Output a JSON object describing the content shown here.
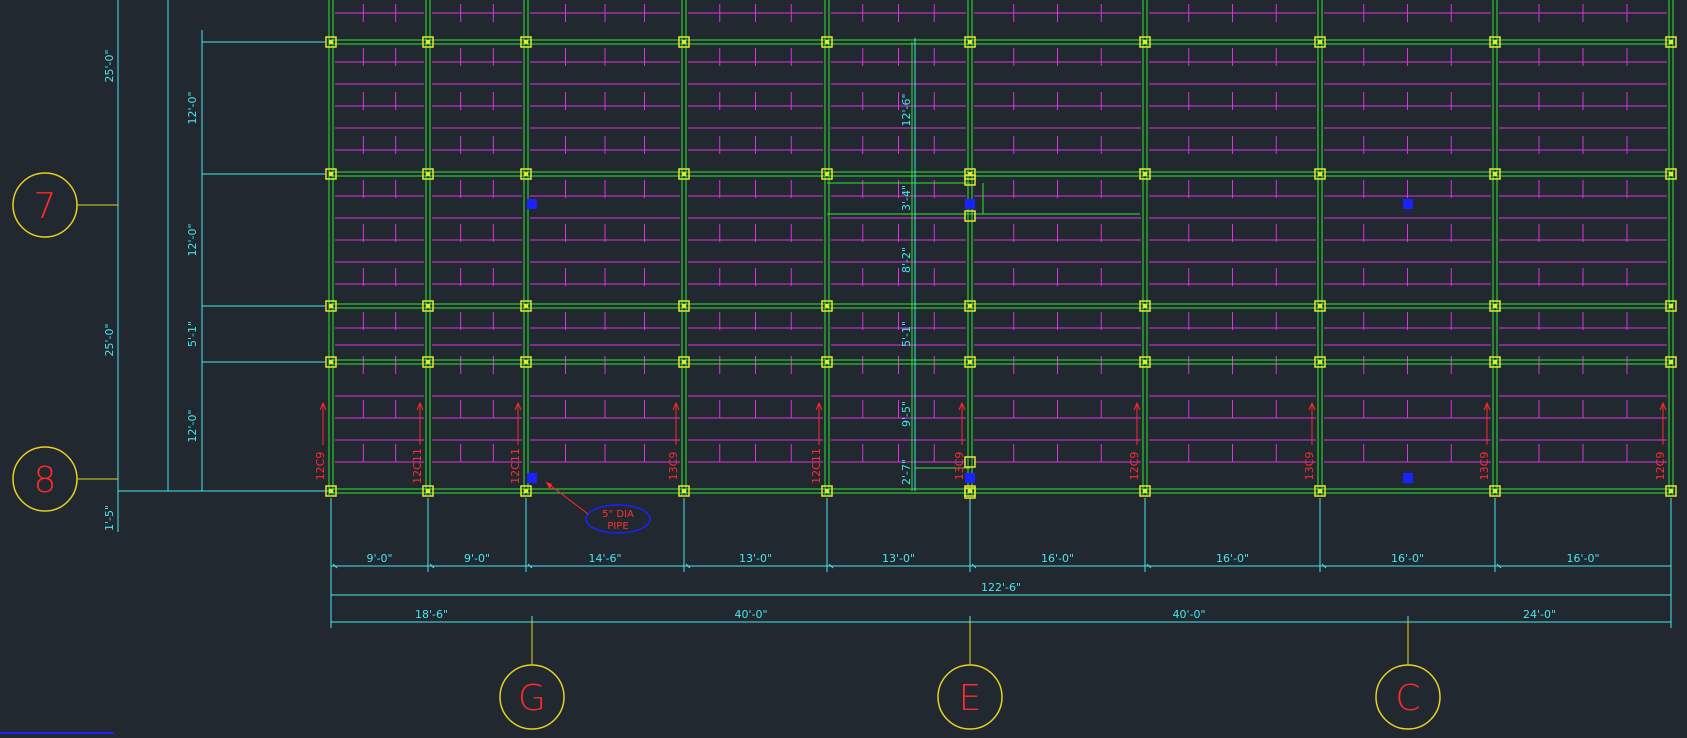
{
  "drawing": {
    "colors": {
      "background": "#212830",
      "grid_beam": "#2ee82e",
      "joist": "#dd33dd",
      "dimension": "#49e6ee",
      "bubble": "#e6d21f",
      "member_label": "#ff2a2a",
      "column_node": "#e6e632",
      "pipe": "#1a22ff"
    },
    "grid_bubbles": {
      "vertical": [
        {
          "id": "grid-bubble-7",
          "label": "7"
        },
        {
          "id": "grid-bubble-8",
          "label": "8"
        }
      ],
      "horizontal": [
        {
          "id": "grid-bubble-g",
          "label": "G"
        },
        {
          "id": "grid-bubble-e",
          "label": "E"
        },
        {
          "id": "grid-bubble-c",
          "label": "C"
        }
      ]
    },
    "bay_dimensions": [
      "9'-0\"",
      "9'-0\"",
      "14'-6\"",
      "13'-0\"",
      "13'-0\"",
      "16'-0\"",
      "16'-0\"",
      "16'-0\"",
      "16'-0\""
    ],
    "overall_dimension": "122'-6\"",
    "grid_dimensions": [
      "18'-6\"",
      "40'-0\"",
      "40'-0\"",
      "24'-0\""
    ],
    "left_vertical_dimensions": [
      "25'-0\"",
      "25'-0\"",
      "1'-5\""
    ],
    "inner_vertical_dimensions": [
      "12'-0\"",
      "12'-0\"",
      "5'-1\"",
      "12'-0\""
    ],
    "opening_dimensions": [
      "12'-6\"",
      "3'-4\"",
      "8'-2\"",
      "5'-1\"",
      "9'-5\"",
      "2'-7\""
    ],
    "member_labels": [
      "12C9",
      "12C11",
      "12C11",
      "13C9",
      "12C11",
      "13C9",
      "12C9",
      "13C9",
      "13C9",
      "12C9"
    ],
    "pipe_note": {
      "line1": "5\" DIA",
      "line2": "PIPE"
    }
  }
}
